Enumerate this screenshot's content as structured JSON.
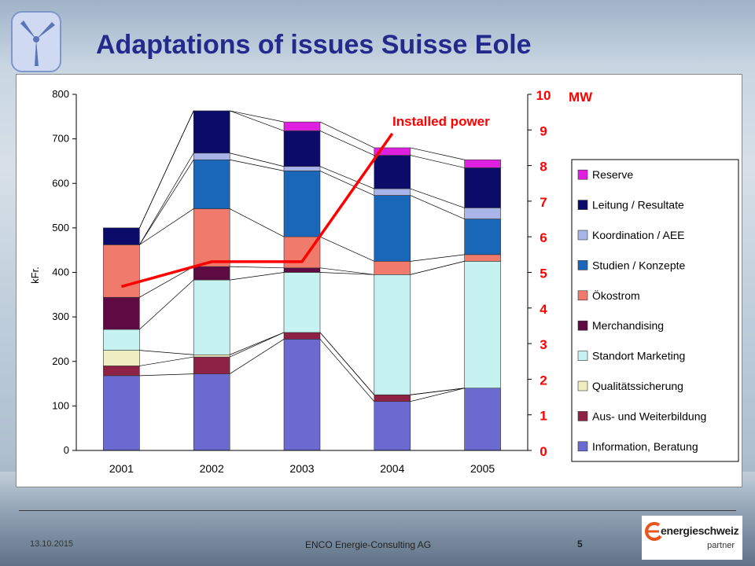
{
  "title": "Adaptations of issues Suisse Eole",
  "footer": {
    "date": "13.10.2015",
    "company": "ENCO Energie-Consulting  AG",
    "page": "5"
  },
  "partner_logo": {
    "word": "energieschweiz",
    "sub": "partner"
  },
  "colors": {
    "title": "#232a8c",
    "line": "#ff0000"
  },
  "chart_data": {
    "type": "bar",
    "stacked": true,
    "categories": [
      "2001",
      "2002",
      "2003",
      "2004",
      "2005"
    ],
    "ylabel": "kFr.",
    "ylim": [
      0,
      800
    ],
    "yticks": [
      0,
      100,
      200,
      300,
      400,
      500,
      600,
      700,
      800
    ],
    "y2label": "MW",
    "y2lim": [
      0,
      10
    ],
    "y2ticks": [
      0,
      1,
      2,
      3,
      4,
      5,
      6,
      7,
      8,
      9,
      10
    ],
    "legend_position": "right",
    "series": [
      {
        "name": "Information, Beratung",
        "color": "#6a6ad0",
        "values": [
          168,
          172,
          250,
          110,
          140
        ]
      },
      {
        "name": "Aus- und Weiterbildung",
        "color": "#8e2146",
        "values": [
          22,
          38,
          15,
          15,
          0
        ]
      },
      {
        "name": "Qualitätssicherung",
        "color": "#efeec0",
        "values": [
          35,
          5,
          0,
          0,
          0
        ]
      },
      {
        "name": "Standort Marketing",
        "color": "#c6f2f2",
        "values": [
          47,
          168,
          135,
          270,
          285
        ]
      },
      {
        "name": "Merchandising",
        "color": "#5e0b43",
        "values": [
          72,
          30,
          10,
          0,
          0
        ]
      },
      {
        "name": "Ökostrom",
        "color": "#f07a6c",
        "values": [
          118,
          130,
          70,
          30,
          15
        ]
      },
      {
        "name": "Studien / Konzepte",
        "color": "#1a66b8",
        "values": [
          0,
          110,
          148,
          148,
          80
        ]
      },
      {
        "name": "Koordination / AEE",
        "color": "#a9b4e8",
        "values": [
          0,
          15,
          10,
          15,
          25
        ]
      },
      {
        "name": "Leitung / Resultate",
        "color": "#0b0b6a",
        "values": [
          38,
          95,
          80,
          75,
          90
        ]
      },
      {
        "name": "Reserve",
        "color": "#e020e0",
        "values": [
          0,
          0,
          20,
          17,
          18
        ]
      }
    ],
    "line_series": {
      "name": "Installed power",
      "axis": "y2",
      "values": [
        4.6,
        5.3,
        5.3,
        8.9,
        null
      ]
    }
  }
}
